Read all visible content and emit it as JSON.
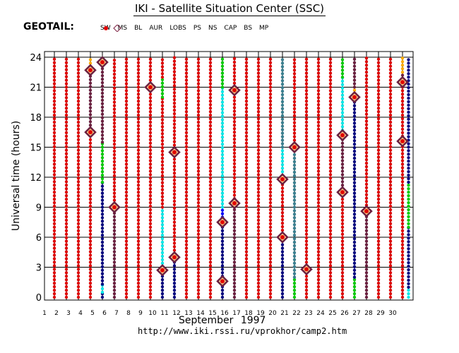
{
  "title": "IKI - Satellite Situation Center (SSC)",
  "satellite": "GEOTAIL:",
  "legend": [
    {
      "key": "SW",
      "label": "SW",
      "color": "#e00000",
      "symbol": "dot"
    },
    {
      "key": "MS",
      "label": "MS",
      "color": "#6b2040",
      "symbol": "dot"
    },
    {
      "key": "BL",
      "label": "BL",
      "color": "#7a1e40",
      "symbol": "dot"
    },
    {
      "key": "AUR",
      "label": "AUR",
      "color": "#ffaa00",
      "symbol": "dot"
    },
    {
      "key": "LOBS",
      "label": "LOBS",
      "color": "#00e8e8",
      "symbol": "dot"
    },
    {
      "key": "PS",
      "label": "PS",
      "color": "#3b8090",
      "symbol": "dot"
    },
    {
      "key": "NS",
      "label": "NS",
      "color": "#000080",
      "symbol": "dot"
    },
    {
      "key": "CAP",
      "label": "CAP",
      "color": "#00cc00",
      "symbol": "dot"
    },
    {
      "key": "BS",
      "label": "BS",
      "color": "#0000ff",
      "symbol": "dot"
    },
    {
      "key": "MP",
      "label": "MP",
      "color": "#e00000",
      "symbol": "dot+diamond"
    }
  ],
  "month_label": "September    1997",
  "url": "http://www.iki.rssi.ru/vprokhor/camp2.htm",
  "chart_data": {
    "type": "scatter",
    "title": "IKI - Satellite Situation Center (SSC)",
    "ylabel": "Universal time (hours)",
    "xlabel": "September 1997",
    "x_ticks": [
      1,
      2,
      3,
      4,
      5,
      6,
      7,
      8,
      9,
      10,
      11,
      12,
      13,
      14,
      15,
      16,
      17,
      18,
      19,
      20,
      21,
      22,
      23,
      24,
      25,
      26,
      27,
      28,
      29,
      30
    ],
    "y_ticks": [
      0,
      3,
      6,
      9,
      12,
      15,
      18,
      21,
      24
    ],
    "xlim": [
      1,
      31
    ],
    "ylim": [
      0,
      24
    ],
    "grid": true,
    "days": [
      {
        "day": 1,
        "segments": [
          {
            "r": "SW",
            "from": 0,
            "to": 24
          }
        ]
      },
      {
        "day": 2,
        "segments": [
          {
            "r": "SW",
            "from": 0,
            "to": 24
          }
        ]
      },
      {
        "day": 3,
        "segments": [
          {
            "r": "SW",
            "from": 0,
            "to": 24
          }
        ]
      },
      {
        "day": 4,
        "segments": [
          {
            "r": "SW",
            "from": 0,
            "to": 16.5
          },
          {
            "r": "MS",
            "from": 16.5,
            "to": 22.7
          },
          {
            "r": "AUR",
            "from": 22.7,
            "to": 24
          }
        ]
      },
      {
        "day": 5,
        "segments": [
          {
            "r": "NS",
            "from": 0,
            "to": 0.5
          },
          {
            "r": "LOBS",
            "from": 0.5,
            "to": 1.3
          },
          {
            "r": "NS",
            "from": 1.3,
            "to": 11.5
          },
          {
            "r": "CAP",
            "from": 11.5,
            "to": 15.5
          },
          {
            "r": "MS",
            "from": 15.5,
            "to": 23.5
          },
          {
            "r": "BL",
            "from": 23.5,
            "to": 24
          }
        ]
      },
      {
        "day": 6,
        "segments": [
          {
            "r": "MS",
            "from": 0,
            "to": 9
          },
          {
            "r": "SW",
            "from": 9,
            "to": 24
          }
        ]
      },
      {
        "day": 7,
        "segments": [
          {
            "r": "SW",
            "from": 0,
            "to": 24
          }
        ]
      },
      {
        "day": 8,
        "segments": [
          {
            "r": "SW",
            "from": 0,
            "to": 24
          }
        ]
      },
      {
        "day": 9,
        "segments": [
          {
            "r": "SW",
            "from": 0,
            "to": 24
          }
        ]
      },
      {
        "day": 10,
        "segments": [
          {
            "r": "NS",
            "from": 0,
            "to": 2.7
          },
          {
            "r": "LOBS",
            "from": 2.7,
            "to": 9
          },
          {
            "r": "SW",
            "from": 9,
            "to": 20
          },
          {
            "r": "CAP",
            "from": 20,
            "to": 22
          },
          {
            "r": "SW",
            "from": 22,
            "to": 24
          }
        ]
      },
      {
        "day": 11,
        "segments": [
          {
            "r": "NS",
            "from": 0,
            "to": 4
          },
          {
            "r": "SW",
            "from": 4,
            "to": 24
          }
        ]
      },
      {
        "day": 12,
        "segments": [
          {
            "r": "SW",
            "from": 0,
            "to": 24
          }
        ]
      },
      {
        "day": 13,
        "segments": [
          {
            "r": "SW",
            "from": 0,
            "to": 24
          }
        ]
      },
      {
        "day": 14,
        "segments": [
          {
            "r": "SW",
            "from": 0,
            "to": 24
          }
        ]
      },
      {
        "day": 15,
        "segments": [
          {
            "r": "NS",
            "from": 0,
            "to": 8
          },
          {
            "r": "BS",
            "from": 8,
            "to": 9
          },
          {
            "r": "LOBS",
            "from": 9,
            "to": 21
          },
          {
            "r": "CAP",
            "from": 21,
            "to": 24
          }
        ]
      },
      {
        "day": 16,
        "segments": [
          {
            "r": "MS",
            "from": 0,
            "to": 9.5
          },
          {
            "r": "SW",
            "from": 9.5,
            "to": 24
          }
        ]
      },
      {
        "day": 17,
        "segments": [
          {
            "r": "SW",
            "from": 0,
            "to": 24
          }
        ]
      },
      {
        "day": 18,
        "segments": [
          {
            "r": "SW",
            "from": 0,
            "to": 24
          }
        ]
      },
      {
        "day": 19,
        "segments": [
          {
            "r": "SW",
            "from": 0,
            "to": 24
          }
        ]
      },
      {
        "day": 20,
        "segments": [
          {
            "r": "NS",
            "from": 0,
            "to": 6
          },
          {
            "r": "SW",
            "from": 6,
            "to": 11.8
          },
          {
            "r": "MS",
            "from": 11.8,
            "to": 12.2
          },
          {
            "r": "LOBS",
            "from": 12.2,
            "to": 15
          },
          {
            "r": "PS",
            "from": 15,
            "to": 24
          }
        ]
      },
      {
        "day": 21,
        "segments": [
          {
            "r": "CAP",
            "from": 0,
            "to": 2
          },
          {
            "r": "PS",
            "from": 2,
            "to": 15
          },
          {
            "r": "SW",
            "from": 15,
            "to": 24
          }
        ]
      },
      {
        "day": 22,
        "segments": [
          {
            "r": "SW",
            "from": 0,
            "to": 24
          }
        ]
      },
      {
        "day": 23,
        "segments": [
          {
            "r": "SW",
            "from": 0,
            "to": 24
          }
        ]
      },
      {
        "day": 24,
        "segments": [
          {
            "r": "SW",
            "from": 0,
            "to": 24
          }
        ]
      },
      {
        "day": 25,
        "segments": [
          {
            "r": "SW",
            "from": 0,
            "to": 10.5
          },
          {
            "r": "MS",
            "from": 10.5,
            "to": 16
          },
          {
            "r": "LOBS",
            "from": 16,
            "to": 22
          },
          {
            "r": "CAP",
            "from": 22,
            "to": 24
          }
        ]
      },
      {
        "day": 26,
        "segments": [
          {
            "r": "CAP",
            "from": 0,
            "to": 2
          },
          {
            "r": "NS",
            "from": 2,
            "to": 20
          },
          {
            "r": "AUR",
            "from": 20,
            "to": 21
          },
          {
            "r": "MS",
            "from": 21,
            "to": 24
          }
        ]
      },
      {
        "day": 27,
        "segments": [
          {
            "r": "MS",
            "from": 0,
            "to": 8.5
          },
          {
            "r": "SW",
            "from": 8.5,
            "to": 24
          }
        ]
      },
      {
        "day": 28,
        "segments": [
          {
            "r": "SW",
            "from": 0,
            "to": 24
          }
        ]
      },
      {
        "day": 29,
        "segments": [
          {
            "r": "SW",
            "from": 0,
            "to": 24
          }
        ]
      },
      {
        "day": 30,
        "segments": [
          {
            "r": "SW",
            "from": 0,
            "to": 21.5
          },
          {
            "r": "MS",
            "from": 21.5,
            "to": 22.5
          },
          {
            "r": "AUR",
            "from": 22.5,
            "to": 24
          }
        ]
      },
      {
        "day": 30.5,
        "segments": [
          {
            "r": "LOBS",
            "from": 0,
            "to": 1
          },
          {
            "r": "NS",
            "from": 1,
            "to": 7
          },
          {
            "r": "CAP",
            "from": 7,
            "to": 11.5
          },
          {
            "r": "NS",
            "from": 11.5,
            "to": 24
          }
        ]
      }
    ],
    "mp_crossings": [
      {
        "day": 4,
        "t": 22.7
      },
      {
        "day": 4,
        "t": 16.5
      },
      {
        "day": 5,
        "t": 23.5
      },
      {
        "day": 6,
        "t": 9
      },
      {
        "day": 9,
        "t": 21
      },
      {
        "day": 10,
        "t": 2.7
      },
      {
        "day": 11,
        "t": 4
      },
      {
        "day": 11,
        "t": 14.5
      },
      {
        "day": 15,
        "t": 7.5
      },
      {
        "day": 15,
        "t": 1.6
      },
      {
        "day": 16,
        "t": 9.4
      },
      {
        "day": 16,
        "t": 20.7
      },
      {
        "day": 20,
        "t": 11.8
      },
      {
        "day": 20,
        "t": 6
      },
      {
        "day": 21,
        "t": 15
      },
      {
        "day": 22,
        "t": 2.8
      },
      {
        "day": 25,
        "t": 16.2
      },
      {
        "day": 25,
        "t": 10.5
      },
      {
        "day": 26,
        "t": 20
      },
      {
        "day": 27,
        "t": 8.6
      },
      {
        "day": 30,
        "t": 21.5
      },
      {
        "day": 30,
        "t": 15.6
      }
    ]
  }
}
